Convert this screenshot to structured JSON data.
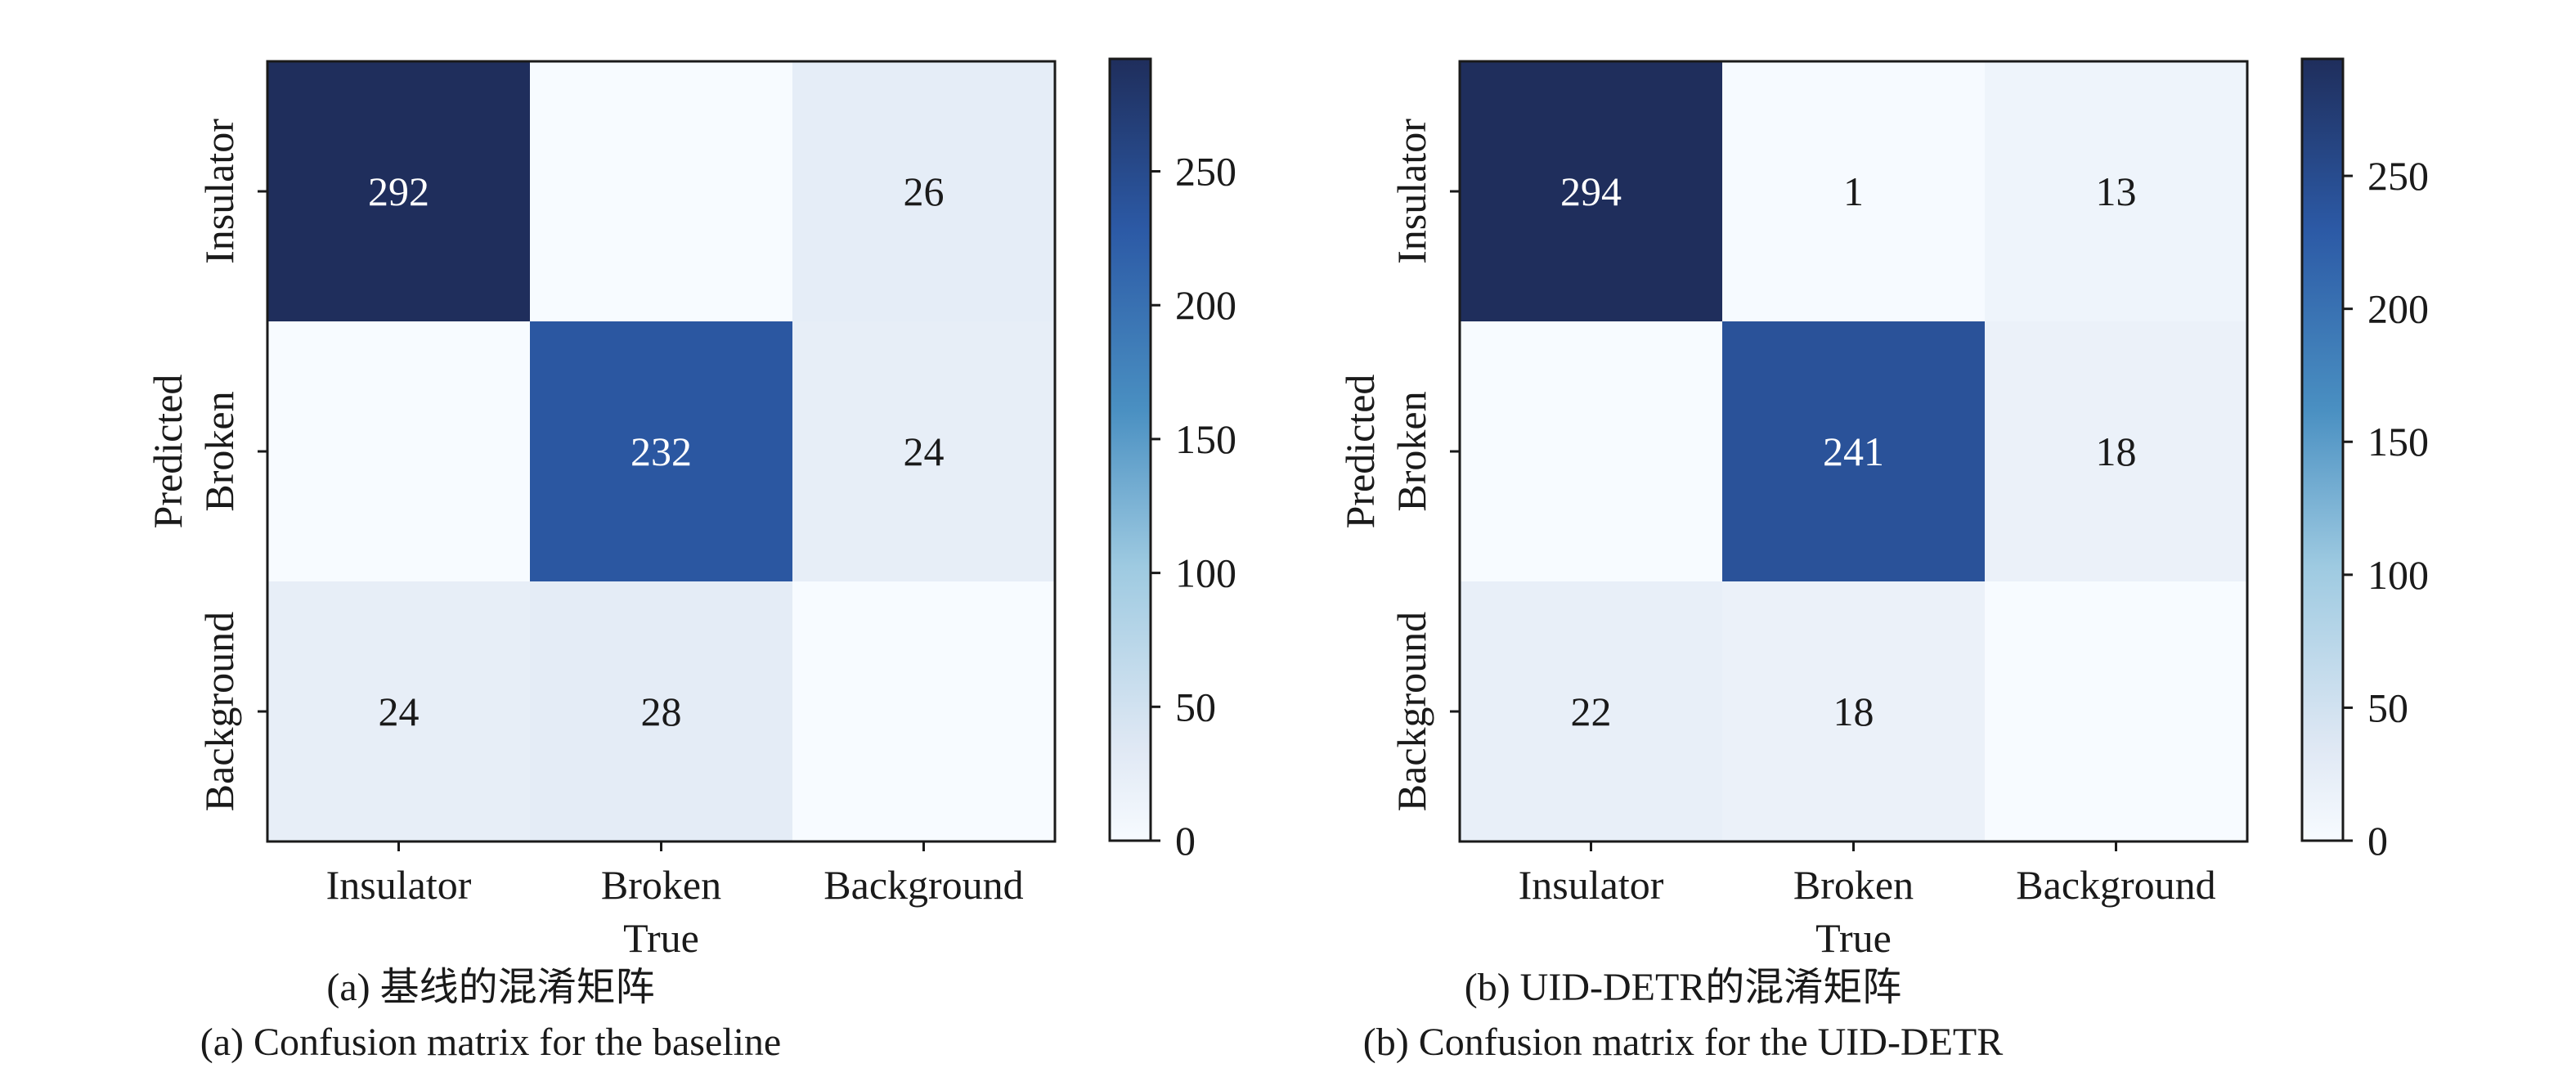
{
  "colors": {
    "high": "#1f2e5c",
    "low": "#f7fbff",
    "axis": "#1a1a1a",
    "cell_text_dark": "#ffffff",
    "cell_text_light": "#1a1a1a"
  },
  "panels": [
    {
      "caption_cn": "(a) 基线的混淆矩阵",
      "caption_en": "(a) Confusion matrix for the baseline"
    },
    {
      "caption_cn": "(b) UID-DETR的混淆矩阵",
      "caption_en": "(b) Confusion matrix for the UID-DETR"
    }
  ],
  "chart_data": [
    {
      "type": "heatmap",
      "xlabel": "True",
      "ylabel": "Predicted",
      "x_categories": [
        "Insulator",
        "Broken",
        "Background"
      ],
      "y_categories": [
        "Insulator",
        "Broken",
        "Background"
      ],
      "values": [
        [
          292,
          0,
          26
        ],
        [
          0,
          232,
          24
        ],
        [
          24,
          28,
          0
        ]
      ],
      "labels": [
        [
          "292",
          "",
          "26"
        ],
        [
          "",
          "232",
          "24"
        ],
        [
          "24",
          "28",
          ""
        ]
      ],
      "colorbar_ticks": [
        0,
        50,
        100,
        150,
        200,
        250
      ],
      "colorbar_range": [
        0,
        292
      ]
    },
    {
      "type": "heatmap",
      "xlabel": "True",
      "ylabel": "Predicted",
      "x_categories": [
        "Insulator",
        "Broken",
        "Background"
      ],
      "y_categories": [
        "Insulator",
        "Broken",
        "Background"
      ],
      "values": [
        [
          294,
          1,
          13
        ],
        [
          0,
          241,
          18
        ],
        [
          22,
          18,
          0
        ]
      ],
      "labels": [
        [
          "294",
          "1",
          "13"
        ],
        [
          "",
          "241",
          "18"
        ],
        [
          "22",
          "18",
          ""
        ]
      ],
      "colorbar_ticks": [
        0,
        50,
        100,
        150,
        200,
        250
      ],
      "colorbar_range": [
        0,
        294
      ]
    }
  ]
}
